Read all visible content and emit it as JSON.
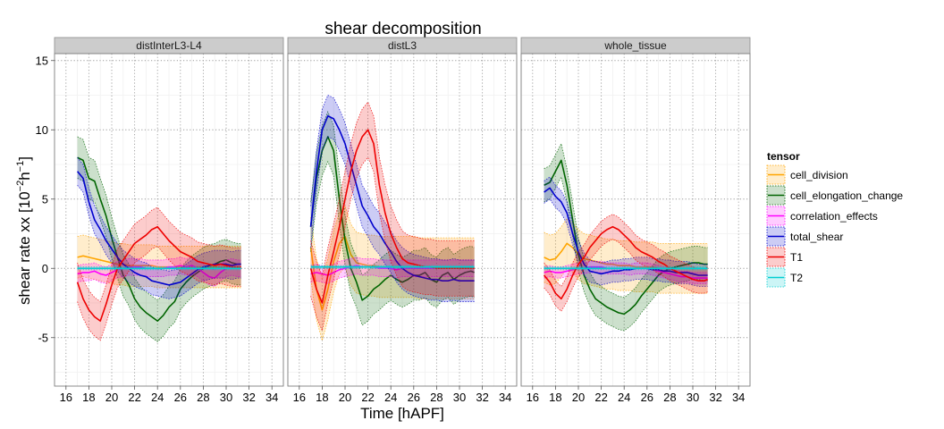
{
  "chart_data": {
    "type": "line",
    "title": "shear decomposition",
    "xlabel": "Time [hAPF]",
    "ylabel": "shear rate xx [10^-2 h^-1]",
    "ylabel_parts": {
      "main": "shear rate xx [10",
      "exp1": "−2",
      "mid": "h",
      "exp2": "−1",
      "end": "]"
    },
    "xlim": [
      15,
      35
    ],
    "ylim": [
      -8.5,
      15.5
    ],
    "x_ticks": [
      16,
      18,
      20,
      22,
      24,
      26,
      28,
      30,
      32,
      34
    ],
    "y_ticks": [
      -5,
      0,
      5,
      10,
      15
    ],
    "y_tick_labels": [
      "-5",
      "0",
      "5",
      "10",
      "15"
    ],
    "grid": true,
    "legend": {
      "title": "tensor",
      "position": "right",
      "entries": [
        {
          "name": "cell_division",
          "color": "#FFA500"
        },
        {
          "name": "cell_elongation_change",
          "color": "#006400"
        },
        {
          "name": "correlation_effects",
          "color": "#FF00FF"
        },
        {
          "name": "total_shear",
          "color": "#0000CD"
        },
        {
          "name": "T1",
          "color": "#EE0000"
        },
        {
          "name": "T2",
          "color": "#00CED1"
        }
      ]
    },
    "x": [
      17,
      17.5,
      18,
      18.5,
      19,
      19.5,
      20,
      20.5,
      21,
      21.5,
      22,
      22.5,
      23,
      23.5,
      24,
      24.5,
      25,
      25.5,
      26,
      26.5,
      27,
      27.5,
      28,
      28.5,
      29,
      29.5,
      30,
      30.5,
      31,
      31.3
    ],
    "panels": [
      {
        "strip": "distInterL3-L4",
        "series": [
          {
            "name": "cell_division",
            "values": [
              0.8,
              0.9,
              0.8,
              0.7,
              0.6,
              0.5,
              0.4,
              0.3,
              0.3,
              0.2,
              0.2,
              0.2,
              0.2,
              0.2,
              0.1,
              0.1,
              0.1,
              0.1,
              0.1,
              0.1,
              0.1,
              0.1,
              0.1,
              0.1,
              0.1,
              0.1,
              0.1,
              0.1,
              0.1,
              0.1
            ],
            "band": 1.5
          },
          {
            "name": "cell_elongation_change",
            "values": [
              8.0,
              7.8,
              6.5,
              6.3,
              5.0,
              3.8,
              2.2,
              0.8,
              -0.5,
              -1.2,
              -2.2,
              -2.8,
              -3.2,
              -3.5,
              -3.8,
              -3.4,
              -2.8,
              -2.4,
              -1.5,
              -1.0,
              -0.6,
              -0.3,
              0.0,
              0.2,
              0.3,
              0.5,
              0.6,
              0.4,
              0.3,
              0.3
            ],
            "band": 1.5
          },
          {
            "name": "correlation_effects",
            "values": [
              -0.4,
              -0.3,
              -0.3,
              -0.2,
              -0.4,
              -0.5,
              -0.3,
              -0.1,
              0.0,
              0.1,
              0.1,
              0.1,
              0.0,
              0.0,
              0.0,
              0.0,
              0.1,
              0.1,
              0.2,
              0.1,
              0.2,
              0.0,
              -0.3,
              -0.6,
              -0.7,
              -0.3,
              0.0,
              0.1,
              0.0,
              0.0
            ],
            "band": 0.6
          },
          {
            "name": "total_shear",
            "values": [
              7.0,
              6.5,
              4.8,
              3.5,
              2.8,
              2.0,
              1.4,
              0.8,
              0.3,
              0.0,
              -0.3,
              -0.5,
              -0.6,
              -0.9,
              -1.0,
              -1.1,
              -1.2,
              -1.1,
              -1.0,
              -0.7,
              -0.4,
              -0.1,
              0.1,
              0.2,
              0.3,
              0.3,
              0.3,
              0.2,
              0.3,
              0.3
            ],
            "band": 1.0
          },
          {
            "name": "T1",
            "values": [
              -1.0,
              -2.2,
              -3.0,
              -3.5,
              -3.8,
              -2.6,
              -1.2,
              0.0,
              0.6,
              1.2,
              1.8,
              2.1,
              2.4,
              2.8,
              3.0,
              2.5,
              2.0,
              1.6,
              1.2,
              1.0,
              0.8,
              0.5,
              0.4,
              0.3,
              0.2,
              0.3,
              0.2,
              0.1,
              0.1,
              0.1
            ],
            "band": 1.4
          },
          {
            "name": "T2",
            "values": [
              0.0,
              0.0,
              0.0,
              0.0,
              0.0,
              0.0,
              0.0,
              0.0,
              0.0,
              0.0,
              0.0,
              0.0,
              0.0,
              0.0,
              0.0,
              0.0,
              0.0,
              0.0,
              0.0,
              0.0,
              0.0,
              0.0,
              0.0,
              0.0,
              0.0,
              0.0,
              0.0,
              0.0,
              0.0,
              0.0
            ],
            "band": 0.1
          }
        ]
      },
      {
        "strip": "distL3",
        "series": [
          {
            "name": "cell_division",
            "values": [
              1.5,
              -1.5,
              -3.0,
              -1.5,
              0.5,
              1.8,
              2.3,
              1.0,
              0.4,
              0.3,
              0.2,
              0.2,
              0.1,
              0.1,
              0.1,
              0.1,
              0.1,
              0.1,
              0.1,
              0.0,
              0.0,
              0.0,
              0.0,
              0.0,
              0.0,
              0.0,
              0.0,
              0.0,
              0.0,
              0.0
            ],
            "band": 2.2
          },
          {
            "name": "cell_elongation_change",
            "values": [
              3.0,
              6.5,
              8.5,
              9.5,
              8.5,
              5.0,
              2.0,
              0.0,
              -1.0,
              -2.3,
              -2.0,
              -1.5,
              -1.2,
              -0.8,
              -0.5,
              -0.8,
              -1.0,
              -0.8,
              -0.5,
              -0.5,
              -0.3,
              -0.8,
              -1.0,
              -0.5,
              -0.3,
              -0.8,
              -0.5,
              -0.3,
              -0.2,
              -0.3
            ],
            "band": 1.8
          },
          {
            "name": "correlation_effects",
            "values": [
              -0.4,
              -0.3,
              -0.4,
              -0.5,
              -0.3,
              -0.1,
              0.0,
              0.1,
              0.2,
              0.1,
              0.1,
              0.1,
              0.0,
              0.0,
              0.0,
              -0.1,
              0.0,
              0.0,
              0.0,
              0.0,
              0.0,
              0.0,
              0.0,
              0.0,
              0.0,
              0.0,
              0.0,
              0.0,
              0.0,
              0.0
            ],
            "band": 0.6
          },
          {
            "name": "total_shear",
            "values": [
              3.0,
              7.0,
              10.0,
              11.0,
              10.8,
              10.0,
              9.0,
              7.5,
              6.0,
              4.5,
              3.8,
              3.0,
              2.5,
              1.8,
              1.2,
              0.5,
              0.0,
              -0.3,
              -0.5,
              -0.6,
              -0.7,
              -0.8,
              -0.8,
              -0.9,
              -0.9,
              -0.8,
              -0.9,
              -0.9,
              -0.9,
              -0.9
            ],
            "band": 1.5
          },
          {
            "name": "T1",
            "values": [
              0.0,
              -1.5,
              -2.5,
              -0.5,
              1.2,
              3.0,
              5.0,
              7.0,
              8.5,
              9.5,
              10.0,
              9.0,
              6.0,
              4.0,
              2.5,
              1.5,
              0.7,
              0.4,
              0.3,
              0.2,
              0.1,
              0.1,
              0.0,
              0.0,
              0.0,
              0.0,
              0.0,
              0.0,
              0.0,
              0.0
            ],
            "band": 2.0
          },
          {
            "name": "T2",
            "values": [
              0.1,
              0.1,
              0.1,
              0.1,
              0.1,
              0.1,
              0.1,
              0.1,
              0.1,
              0.1,
              0.1,
              0.1,
              0.1,
              0.1,
              0.1,
              0.1,
              0.1,
              0.1,
              0.1,
              0.1,
              0.1,
              0.1,
              0.1,
              0.1,
              0.1,
              0.1,
              0.1,
              0.1,
              0.1,
              0.1
            ],
            "band": 0.1
          }
        ]
      },
      {
        "strip": "whole_tissue",
        "series": [
          {
            "name": "cell_division",
            "values": [
              0.8,
              0.6,
              0.7,
              1.2,
              1.8,
              1.5,
              1.0,
              0.7,
              0.6,
              0.5,
              0.4,
              0.3,
              0.3,
              0.2,
              0.2,
              0.2,
              0.1,
              0.1,
              0.1,
              0.1,
              0.0,
              0.0,
              0.0,
              0.0,
              0.0,
              0.0,
              0.0,
              0.0,
              0.0,
              0.0
            ],
            "band": 1.8
          },
          {
            "name": "cell_elongation_change",
            "values": [
              6.0,
              6.2,
              7.0,
              7.8,
              6.0,
              3.5,
              1.0,
              -0.5,
              -1.5,
              -2.2,
              -2.5,
              -2.8,
              -3.0,
              -3.2,
              -3.3,
              -3.0,
              -2.6,
              -2.0,
              -1.5,
              -1.0,
              -0.5,
              -0.2,
              0.0,
              0.1,
              0.2,
              0.3,
              0.4,
              0.4,
              0.3,
              0.3
            ],
            "band": 1.2
          },
          {
            "name": "correlation_effects",
            "values": [
              -0.3,
              -0.2,
              -0.3,
              -0.3,
              -0.2,
              -0.1,
              0.0,
              0.0,
              0.1,
              0.1,
              0.1,
              0.0,
              0.0,
              0.0,
              0.0,
              -0.1,
              0.0,
              0.0,
              0.0,
              -0.1,
              -0.2,
              -0.3,
              -0.4,
              -0.5,
              -0.6,
              -0.6,
              -0.7,
              -0.7,
              -0.7,
              -0.7
            ],
            "band": 0.4
          },
          {
            "name": "total_shear",
            "values": [
              5.5,
              5.8,
              5.2,
              4.8,
              4.0,
              2.5,
              1.2,
              0.3,
              -0.2,
              -0.3,
              -0.4,
              -0.3,
              -0.2,
              -0.2,
              -0.1,
              -0.1,
              0.0,
              0.0,
              0.0,
              -0.1,
              -0.1,
              -0.2,
              -0.2,
              -0.3,
              -0.3,
              -0.3,
              -0.4,
              -0.5,
              -0.5,
              -0.5
            ],
            "band": 0.8
          },
          {
            "name": "T1",
            "values": [
              -0.5,
              -1.0,
              -1.8,
              -2.2,
              -1.5,
              -0.5,
              0.3,
              0.8,
              1.5,
              2.0,
              2.5,
              2.8,
              3.0,
              2.8,
              2.4,
              2.0,
              1.5,
              1.2,
              1.0,
              0.8,
              0.5,
              0.3,
              0.0,
              -0.2,
              -0.4,
              -0.6,
              -0.8,
              -0.9,
              -0.9,
              -0.8
            ],
            "band": 0.9
          },
          {
            "name": "T2",
            "values": [
              0.0,
              0.0,
              0.0,
              0.0,
              0.0,
              0.0,
              0.0,
              0.0,
              0.0,
              0.0,
              0.0,
              0.0,
              0.0,
              0.0,
              0.0,
              0.0,
              0.0,
              0.0,
              0.0,
              0.0,
              0.0,
              0.0,
              0.0,
              0.0,
              0.0,
              0.0,
              0.0,
              0.0,
              0.0,
              0.0
            ],
            "band": 0.1
          }
        ]
      }
    ]
  }
}
